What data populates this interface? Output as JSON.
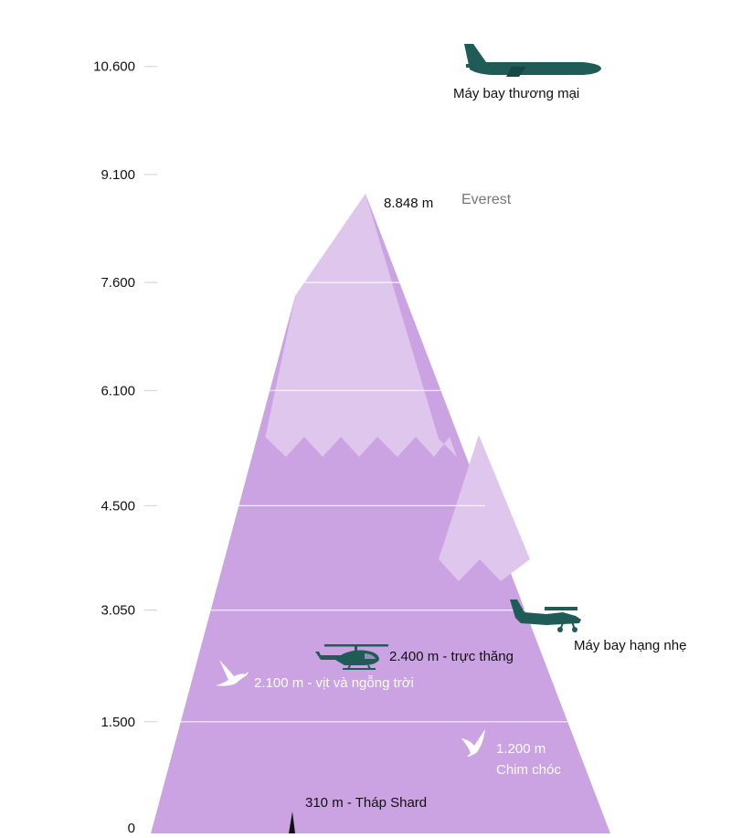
{
  "axis": {
    "ticks": [
      0,
      1500,
      3050,
      4500,
      6100,
      7600,
      9100,
      10600
    ],
    "tick_labels": [
      "0",
      "1.500",
      "3.050",
      "4.500",
      "6.100",
      "7.600",
      "9.100",
      "10.600"
    ]
  },
  "everest": {
    "height": 8848,
    "height_label": "8.848 m",
    "name": "Everest"
  },
  "items": [
    {
      "key": "commercial-plane",
      "altitude": 10600,
      "label": "Máy bay thương mại"
    },
    {
      "key": "light-plane",
      "altitude": 3050,
      "label": "Máy bay hạng nhẹ"
    },
    {
      "key": "helicopter",
      "altitude": 2400,
      "label": "2.400 m - trực thăng"
    },
    {
      "key": "geese",
      "altitude": 2100,
      "label": "2.100 m - vịt và ngỗng trời"
    },
    {
      "key": "birds",
      "altitude": 1200,
      "label_line1": "1.200 m",
      "label_line2": "Chim chóc"
    },
    {
      "key": "shard",
      "altitude": 310,
      "label": "310 m - Tháp Shard"
    }
  ],
  "colors": {
    "mountain_base": "#cba2e2",
    "mountain_snow": "#dfc6ec",
    "vehicles": "#1f5c57"
  },
  "icons": {
    "commercial-plane": "airliner-icon",
    "light-plane": "small-plane-icon",
    "helicopter": "helicopter-icon",
    "geese": "goose-icon",
    "birds": "bird-icon",
    "shard": "tower-icon"
  }
}
